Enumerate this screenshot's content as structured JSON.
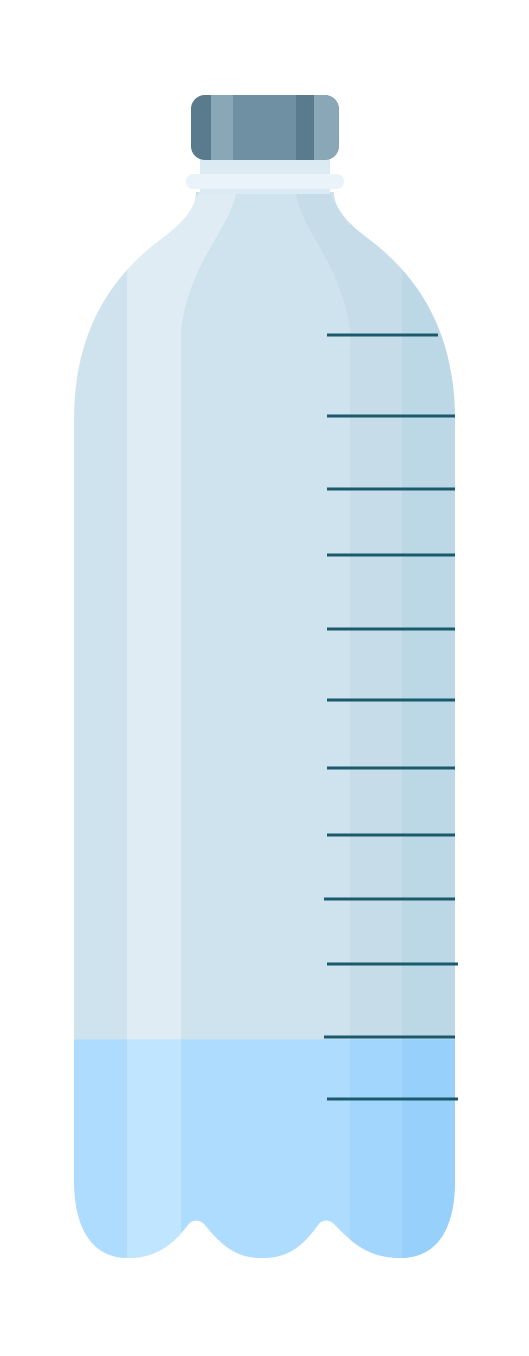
{
  "bottle": {
    "water_level_fraction": 0.205,
    "tick_count": 12,
    "colors": {
      "cap_base": "#6f8fa3",
      "cap_light": "#8aa7b8",
      "cap_dark": "#5a7a8e",
      "cap_ring": "#e9f3f9",
      "neck": "#dbeaf3",
      "body": "#cfe3ee",
      "body_highlight": "#dfecf4",
      "body_shadow_mid": "#c6dde9",
      "body_shadow_right": "#bcd8e6",
      "water": "#addcff",
      "water_highlight": "#bfe5ff",
      "water_shadow_mid": "#a2d6fc",
      "water_shadow_right": "#96d0fb",
      "tick": "#1b5a6b",
      "background": "#ffffff"
    }
  }
}
